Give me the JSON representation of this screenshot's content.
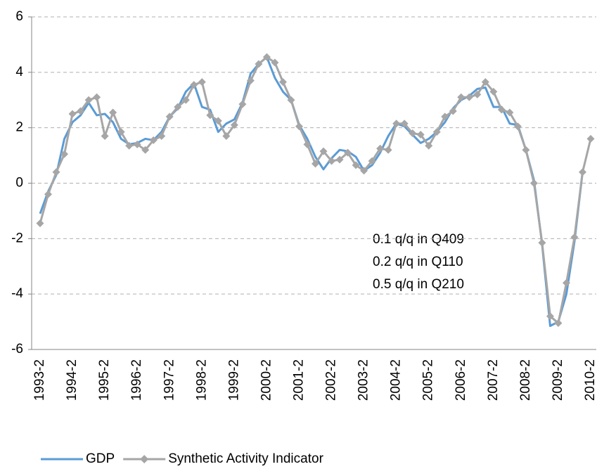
{
  "chart_data": {
    "type": "line",
    "categories": [
      "1993-2",
      null,
      null,
      null,
      "1994-2",
      null,
      null,
      null,
      "1995-2",
      null,
      null,
      null,
      "1996-2",
      null,
      null,
      null,
      "1997-2",
      null,
      null,
      null,
      "1998-2",
      null,
      null,
      null,
      "1999-2",
      null,
      null,
      null,
      "2000-2",
      null,
      null,
      null,
      "2001-2",
      null,
      null,
      null,
      "2002-2",
      null,
      null,
      null,
      "2003-2",
      null,
      null,
      null,
      "2004-2",
      null,
      null,
      null,
      "2005-2",
      null,
      null,
      null,
      "2006-2",
      null,
      null,
      null,
      "2007-2",
      null,
      null,
      null,
      "2008-2",
      null,
      null,
      null,
      "2009-2",
      null,
      null,
      null,
      "2010-2"
    ],
    "series": [
      {
        "name": "GDP",
        "color": "#5b9bd5",
        "values": [
          -1.1,
          -0.3,
          0.3,
          1.6,
          2.2,
          2.45,
          2.9,
          2.45,
          2.5,
          2.2,
          1.6,
          1.4,
          1.45,
          1.6,
          1.55,
          1.85,
          2.4,
          2.7,
          3.3,
          3.6,
          2.75,
          2.65,
          1.85,
          2.15,
          2.3,
          2.9,
          3.95,
          4.3,
          4.55,
          3.8,
          3.3,
          3.0,
          2.1,
          1.6,
          0.95,
          0.5,
          0.9,
          1.2,
          1.15,
          0.95,
          0.45,
          0.65,
          1.1,
          1.7,
          2.15,
          2.05,
          1.75,
          1.45,
          1.6,
          1.85,
          2.2,
          2.7,
          3.0,
          3.15,
          3.4,
          3.45,
          2.75,
          2.75,
          2.15,
          2.1,
          1.2,
          0.1,
          -2.2,
          -5.15,
          -5.0,
          -4.0,
          -2.1,
          0.4,
          null
        ]
      },
      {
        "name": "Synthetic Activity Indicator",
        "color": "#a6a6a6",
        "values": [
          -1.45,
          -0.4,
          0.4,
          1.05,
          2.5,
          2.6,
          3.0,
          3.1,
          1.7,
          2.55,
          1.85,
          1.35,
          1.4,
          1.2,
          1.55,
          1.7,
          2.4,
          2.75,
          3.0,
          3.55,
          3.65,
          2.45,
          2.25,
          1.7,
          2.1,
          2.85,
          3.7,
          4.3,
          4.55,
          4.35,
          3.65,
          3.0,
          2.05,
          1.4,
          0.7,
          1.15,
          0.8,
          0.85,
          1.1,
          0.65,
          0.45,
          0.8,
          1.25,
          1.2,
          2.15,
          2.15,
          1.8,
          1.75,
          1.35,
          1.85,
          2.4,
          2.6,
          3.1,
          3.1,
          3.2,
          3.65,
          3.3,
          2.65,
          2.55,
          2.05,
          1.2,
          0.0,
          -2.15,
          -4.8,
          -5.05,
          -3.6,
          -1.95,
          0.4,
          1.6
        ]
      }
    ],
    "ylim": [
      -6,
      6
    ],
    "yticks": [
      -6,
      -4,
      -2,
      0,
      2,
      4,
      6
    ],
    "grid": true,
    "annotations": [
      "0.1 q/q in Q409",
      "0.2 q/q in Q110",
      "0.5 q/q in Q210"
    ]
  }
}
